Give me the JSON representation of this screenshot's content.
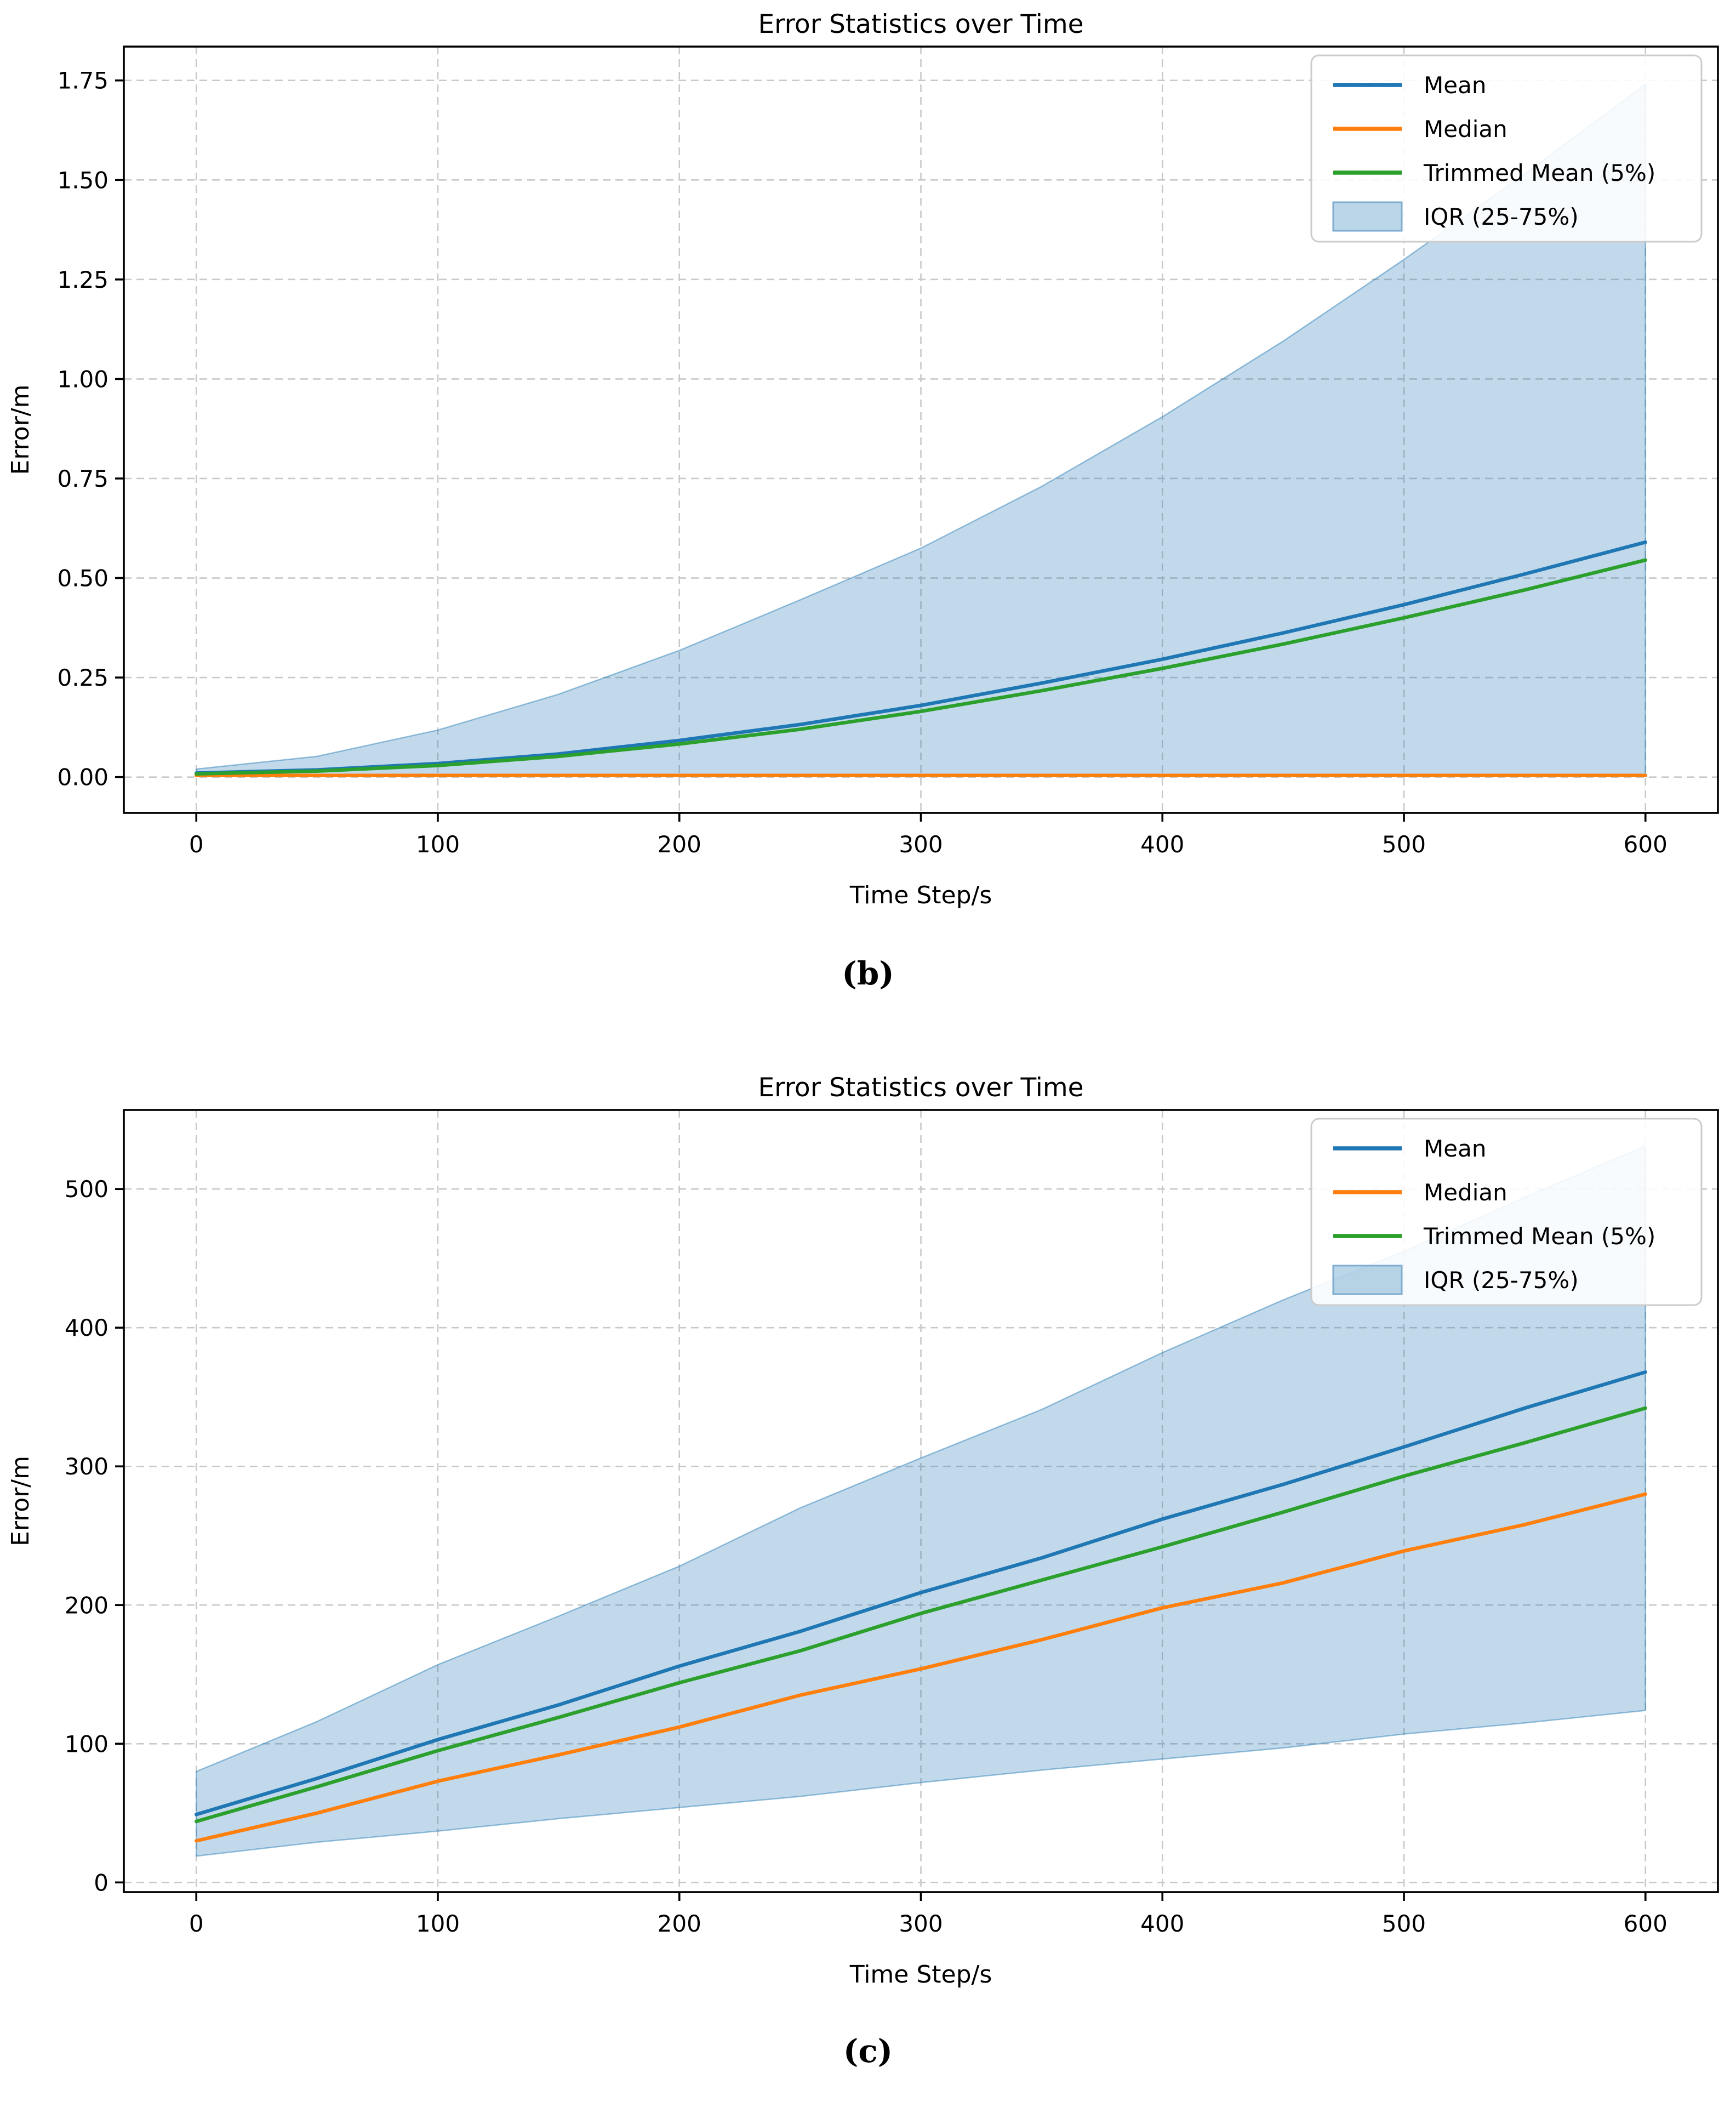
{
  "figures": [
    {
      "caption": "(b)",
      "legend": [
        {
          "label": "Mean",
          "type": "line",
          "color": "#1f77b4"
        },
        {
          "label": "Median",
          "type": "line",
          "color": "#ff7f0e"
        },
        {
          "label": "Trimmed Mean (5%)",
          "type": "line",
          "color": "#2ca02c"
        },
        {
          "label": "IQR (25-75%)",
          "type": "patch",
          "color": "rgba(31,119,180,0.30)"
        }
      ],
      "chart_data": {
        "type": "line",
        "title": "Error Statistics over Time",
        "xlabel": "Time Step/s",
        "ylabel": "Error/m",
        "x": [
          0,
          50,
          100,
          150,
          200,
          250,
          300,
          350,
          400,
          450,
          500,
          550,
          600
        ],
        "series": [
          {
            "name": "Mean",
            "color": "#1f77b4",
            "values": [
              0.01,
              0.018,
              0.034,
              0.058,
              0.092,
              0.132,
              0.18,
              0.236,
              0.296,
              0.362,
              0.433,
              0.51,
              0.59
            ]
          },
          {
            "name": "Median",
            "color": "#ff7f0e",
            "values": [
              0.004,
              0.004,
              0.004,
              0.004,
              0.004,
              0.004,
              0.004,
              0.004,
              0.004,
              0.004,
              0.004,
              0.004,
              0.004
            ]
          },
          {
            "name": "Trimmed Mean (5%)",
            "color": "#2ca02c",
            "values": [
              0.008,
              0.015,
              0.029,
              0.052,
              0.083,
              0.12,
              0.165,
              0.217,
              0.273,
              0.334,
              0.4,
              0.47,
              0.545
            ]
          }
        ],
        "band": {
          "name": "IQR (25-75%)",
          "fill": "rgba(31,119,180,0.28)",
          "edge": "rgba(31,119,180,0.45)",
          "lower": [
            0.003,
            0.003,
            0.003,
            0.003,
            0.003,
            0.003,
            0.003,
            0.003,
            0.003,
            0.003,
            0.003,
            0.003,
            0.003
          ],
          "upper": [
            0.02,
            0.052,
            0.118,
            0.208,
            0.318,
            0.445,
            0.575,
            0.73,
            0.905,
            1.095,
            1.3,
            1.515,
            1.74
          ]
        },
        "xlim": [
          -30,
          630
        ],
        "ylim": [
          -0.09,
          1.835
        ],
        "xticks": {
          "values": [
            0,
            100,
            200,
            300,
            400,
            500,
            600
          ],
          "labels": [
            "0",
            "100",
            "200",
            "300",
            "400",
            "500",
            "600"
          ]
        },
        "yticks": {
          "values": [
            0.0,
            0.25,
            0.5,
            0.75,
            1.0,
            1.25,
            1.5,
            1.75
          ],
          "labels": [
            "0.00",
            "0.25",
            "0.50",
            "0.75",
            "1.00",
            "1.25",
            "1.50",
            "1.75"
          ]
        },
        "grid": true,
        "legend_position": "upper right"
      }
    },
    {
      "caption": "(c)",
      "legend": [
        {
          "label": "Mean",
          "type": "line",
          "color": "#1f77b4"
        },
        {
          "label": "Median",
          "type": "line",
          "color": "#ff7f0e"
        },
        {
          "label": "Trimmed Mean (5%)",
          "type": "line",
          "color": "#2ca02c"
        },
        {
          "label": "IQR (25-75%)",
          "type": "patch",
          "color": "rgba(31,119,180,0.30)"
        }
      ],
      "chart_data": {
        "type": "line",
        "title": "Error Statistics over Time",
        "xlabel": "Time Step/s",
        "ylabel": "Error/m",
        "x": [
          0,
          50,
          100,
          150,
          200,
          250,
          300,
          350,
          400,
          450,
          500,
          550,
          600
        ],
        "series": [
          {
            "name": "Mean",
            "color": "#1f77b4",
            "values": [
              49,
              75,
              103,
              128,
              156,
              181,
              209,
              234,
              262,
              287,
              314,
              342,
              368
            ]
          },
          {
            "name": "Median",
            "color": "#ff7f0e",
            "values": [
              30,
              50,
              73,
              92,
              112,
              135,
              154,
              175,
              198,
              216,
              239,
              258,
              280
            ]
          },
          {
            "name": "Trimmed Mean (5%)",
            "color": "#2ca02c",
            "values": [
              44,
              69,
              95,
              119,
              144,
              167,
              194,
              218,
              242,
              267,
              293,
              317,
              342
            ]
          }
        ],
        "band": {
          "name": "IQR (25-75%)",
          "fill": "rgba(31,119,180,0.28)",
          "edge": "rgba(31,119,180,0.45)",
          "lower": [
            19,
            29,
            37,
            46,
            54,
            62,
            72,
            81,
            89,
            97,
            107,
            115,
            124
          ],
          "upper": [
            80,
            116,
            157,
            192,
            228,
            270,
            306,
            341,
            382,
            420,
            455,
            494,
            531
          ]
        },
        "xlim": [
          -30,
          630
        ],
        "ylim": [
          -7,
          557
        ],
        "xticks": {
          "values": [
            0,
            100,
            200,
            300,
            400,
            500,
            600
          ],
          "labels": [
            "0",
            "100",
            "200",
            "300",
            "400",
            "500",
            "600"
          ]
        },
        "yticks": {
          "values": [
            0,
            100,
            200,
            300,
            400,
            500
          ],
          "labels": [
            "0",
            "100",
            "200",
            "300",
            "400",
            "500"
          ]
        },
        "grid": true,
        "legend_position": "upper right"
      }
    }
  ]
}
